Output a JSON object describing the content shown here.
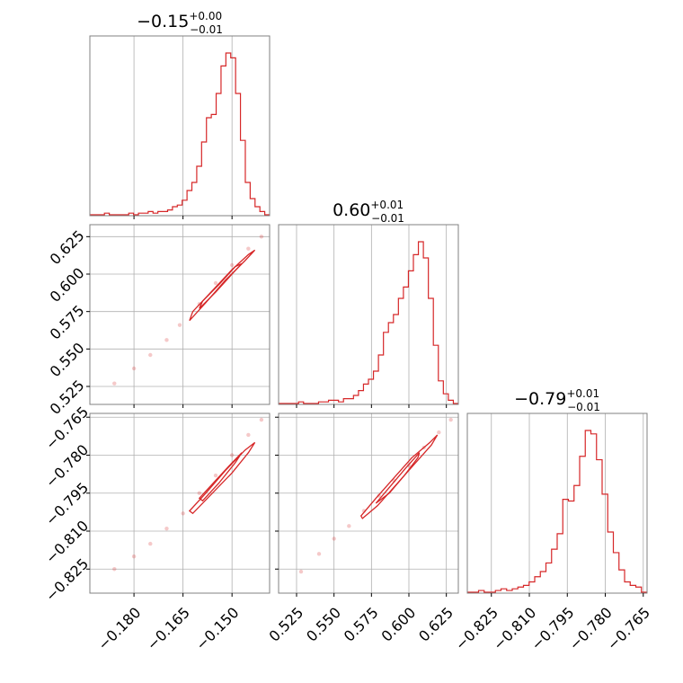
{
  "chart_data": {
    "type": "corner",
    "color": "#d62728",
    "parameters": [
      {
        "title": {
          "median": "−0.15",
          "upper": "+0.00",
          "lower": "−0.01"
        },
        "range": [
          -0.1935,
          -0.1385
        ],
        "ticks": [
          -0.18,
          -0.165,
          -0.15
        ],
        "tick_labels": [
          "−0.180",
          "−0.165",
          "−0.150"
        ],
        "histogram": {
          "counts": [
            0,
            0,
            0,
            1,
            0,
            0,
            0,
            0,
            1,
            0,
            1,
            1,
            2,
            1,
            2,
            2,
            3,
            5,
            6,
            9,
            15,
            20,
            30,
            45,
            60,
            62,
            75,
            92,
            100,
            97,
            75,
            46,
            20,
            10,
            5,
            2,
            0
          ]
        }
      },
      {
        "title": {
          "median": "0.60",
          "upper": "+0.01",
          "lower": "−0.01"
        },
        "range": [
          0.513,
          0.633
        ],
        "ticks": [
          0.525,
          0.55,
          0.575,
          0.6,
          0.625
        ],
        "tick_labels": [
          "0.525",
          "0.550",
          "0.575",
          "0.600",
          "0.625"
        ],
        "histogram": {
          "counts": [
            0,
            0,
            0,
            0,
            1,
            0,
            0,
            0,
            1,
            1,
            2,
            2,
            1,
            3,
            3,
            5,
            8,
            12,
            15,
            20,
            30,
            44,
            50,
            55,
            65,
            72,
            82,
            92,
            100,
            90,
            65,
            36,
            14,
            6,
            2,
            0
          ]
        }
      },
      {
        "title": {
          "median": "−0.79",
          "upper": "+0.01",
          "lower": "−0.01"
        },
        "range": [
          -0.8345,
          -0.7635
        ],
        "ticks": [
          -0.825,
          -0.81,
          -0.795,
          -0.78,
          -0.765
        ],
        "tick_labels": [
          "−0.825",
          "−0.810",
          "−0.795",
          "−0.780",
          "−0.765"
        ],
        "histogram": {
          "counts": [
            0,
            0,
            1,
            0,
            0,
            1,
            2,
            1,
            2,
            3,
            4,
            6,
            9,
            12,
            17,
            25,
            34,
            54,
            53,
            62,
            79,
            94,
            92,
            77,
            57,
            35,
            23,
            13,
            6,
            4,
            3,
            0
          ]
        }
      }
    ],
    "pairs": [
      {
        "x_param": 0,
        "y_param": 1,
        "samples": [
          [
            -0.186,
            0.527
          ],
          [
            -0.18,
            0.537
          ],
          [
            -0.175,
            0.546
          ],
          [
            -0.17,
            0.556
          ],
          [
            -0.166,
            0.566
          ],
          [
            -0.16,
            0.58
          ],
          [
            -0.155,
            0.594
          ],
          [
            -0.15,
            0.606
          ],
          [
            -0.145,
            0.617
          ],
          [
            -0.141,
            0.625
          ]
        ],
        "contours": [
          [
            [
              -0.163,
              0.569
            ],
            [
              -0.158,
              0.581
            ],
            [
              -0.152,
              0.596
            ],
            [
              -0.146,
              0.609
            ],
            [
              -0.143,
              0.616
            ],
            [
              -0.145,
              0.613
            ],
            [
              -0.15,
              0.603
            ],
            [
              -0.156,
              0.589
            ],
            [
              -0.162,
              0.575
            ],
            [
              -0.163,
              0.569
            ]
          ],
          [
            [
              -0.16,
              0.577
            ],
            [
              -0.155,
              0.588
            ],
            [
              -0.15,
              0.6
            ],
            [
              -0.147,
              0.607
            ],
            [
              -0.149,
              0.605
            ],
            [
              -0.154,
              0.593
            ],
            [
              -0.159,
              0.582
            ],
            [
              -0.16,
              0.577
            ]
          ]
        ]
      },
      {
        "x_param": 0,
        "y_param": 2,
        "samples": [
          [
            -0.186,
            -0.825
          ],
          [
            -0.18,
            -0.82
          ],
          [
            -0.175,
            -0.815
          ],
          [
            -0.17,
            -0.809
          ],
          [
            -0.165,
            -0.803
          ],
          [
            -0.16,
            -0.795
          ],
          [
            -0.155,
            -0.788
          ],
          [
            -0.15,
            -0.78
          ],
          [
            -0.145,
            -0.772
          ],
          [
            -0.141,
            -0.766
          ]
        ],
        "contours": [
          [
            [
              -0.163,
              -0.802
            ],
            [
              -0.158,
              -0.795
            ],
            [
              -0.152,
              -0.786
            ],
            [
              -0.146,
              -0.778
            ],
            [
              -0.143,
              -0.775
            ],
            [
              -0.145,
              -0.779
            ],
            [
              -0.15,
              -0.787
            ],
            [
              -0.156,
              -0.795
            ],
            [
              -0.162,
              -0.803
            ],
            [
              -0.163,
              -0.802
            ]
          ],
          [
            [
              -0.16,
              -0.797
            ],
            [
              -0.155,
              -0.79
            ],
            [
              -0.15,
              -0.783
            ],
            [
              -0.147,
              -0.779
            ],
            [
              -0.149,
              -0.783
            ],
            [
              -0.154,
              -0.791
            ],
            [
              -0.159,
              -0.798
            ],
            [
              -0.16,
              -0.797
            ]
          ]
        ]
      },
      {
        "x_param": 1,
        "y_param": 2,
        "samples": [
          [
            0.528,
            -0.826
          ],
          [
            0.54,
            -0.819
          ],
          [
            0.55,
            -0.813
          ],
          [
            0.56,
            -0.808
          ],
          [
            0.57,
            -0.802
          ],
          [
            0.58,
            -0.796
          ],
          [
            0.59,
            -0.79
          ],
          [
            0.6,
            -0.784
          ],
          [
            0.61,
            -0.777
          ],
          [
            0.62,
            -0.771
          ],
          [
            0.628,
            -0.766
          ]
        ],
        "contours": [
          [
            [
              0.568,
              -0.804
            ],
            [
              0.578,
              -0.797
            ],
            [
              0.59,
              -0.789
            ],
            [
              0.602,
              -0.781
            ],
            [
              0.614,
              -0.775
            ],
            [
              0.619,
              -0.772
            ],
            [
              0.615,
              -0.776
            ],
            [
              0.603,
              -0.784
            ],
            [
              0.591,
              -0.792
            ],
            [
              0.579,
              -0.8
            ],
            [
              0.569,
              -0.805
            ],
            [
              0.568,
              -0.804
            ]
          ],
          [
            [
              0.578,
              -0.799
            ],
            [
              0.588,
              -0.792
            ],
            [
              0.598,
              -0.785
            ],
            [
              0.607,
              -0.779
            ],
            [
              0.606,
              -0.781
            ],
            [
              0.597,
              -0.788
            ],
            [
              0.587,
              -0.795
            ],
            [
              0.578,
              -0.799
            ]
          ]
        ]
      }
    ]
  }
}
